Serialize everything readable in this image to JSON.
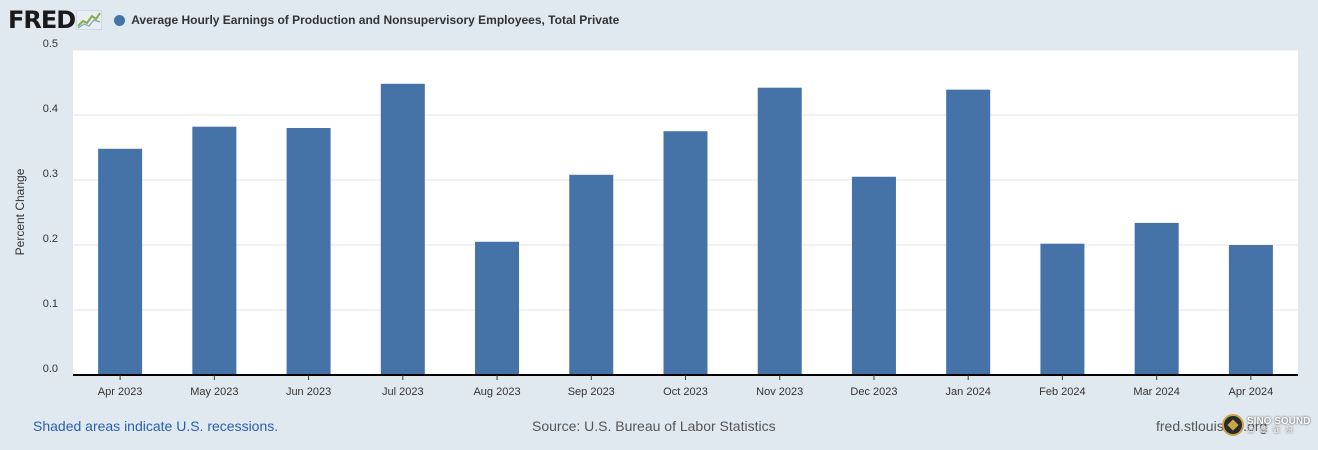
{
  "brand": {
    "logo_text": "FRED",
    "logo_icon": "fred-line-chart-icon"
  },
  "colors": {
    "series": "#4572a7",
    "page_bg": "#e1e9f0",
    "plot_bg": "#ffffff",
    "link": "#2a5db0"
  },
  "chart_data": {
    "type": "bar",
    "title": "",
    "ylabel": "Percent Change",
    "xlabel": "",
    "categories": [
      "Apr 2023",
      "May 2023",
      "Jun 2023",
      "Jul 2023",
      "Aug 2023",
      "Sep 2023",
      "Oct 2023",
      "Nov 2023",
      "Dec 2023",
      "Jan 2024",
      "Feb 2024",
      "Mar 2024",
      "Apr 2024"
    ],
    "series": [
      {
        "name": "Average Hourly Earnings of Production and Nonsupervisory Employees, Total Private",
        "color": "#4572a7",
        "values": [
          0.348,
          0.382,
          0.38,
          0.448,
          0.205,
          0.308,
          0.375,
          0.442,
          0.305,
          0.439,
          0.202,
          0.234,
          0.2
        ]
      }
    ],
    "ylim": [
      0,
      0.5
    ],
    "yticks": [
      0.0,
      0.1,
      0.2,
      0.3,
      0.4,
      0.5
    ],
    "ytick_labels": [
      "0.0",
      "0.1",
      "0.2",
      "0.3",
      "0.4",
      "0.5"
    ],
    "grid": true,
    "legend": "top-left"
  },
  "footer": {
    "recession_note": "Shaded areas indicate U.S. recessions.",
    "source": "Source: U.S. Bureau of Labor Statistics",
    "site": "fred.stlouisfed.org"
  },
  "watermark": {
    "main": "SINO SOUND",
    "sub": "澳 聲 通 訊",
    "icon": "sino-sound-logo-icon"
  }
}
